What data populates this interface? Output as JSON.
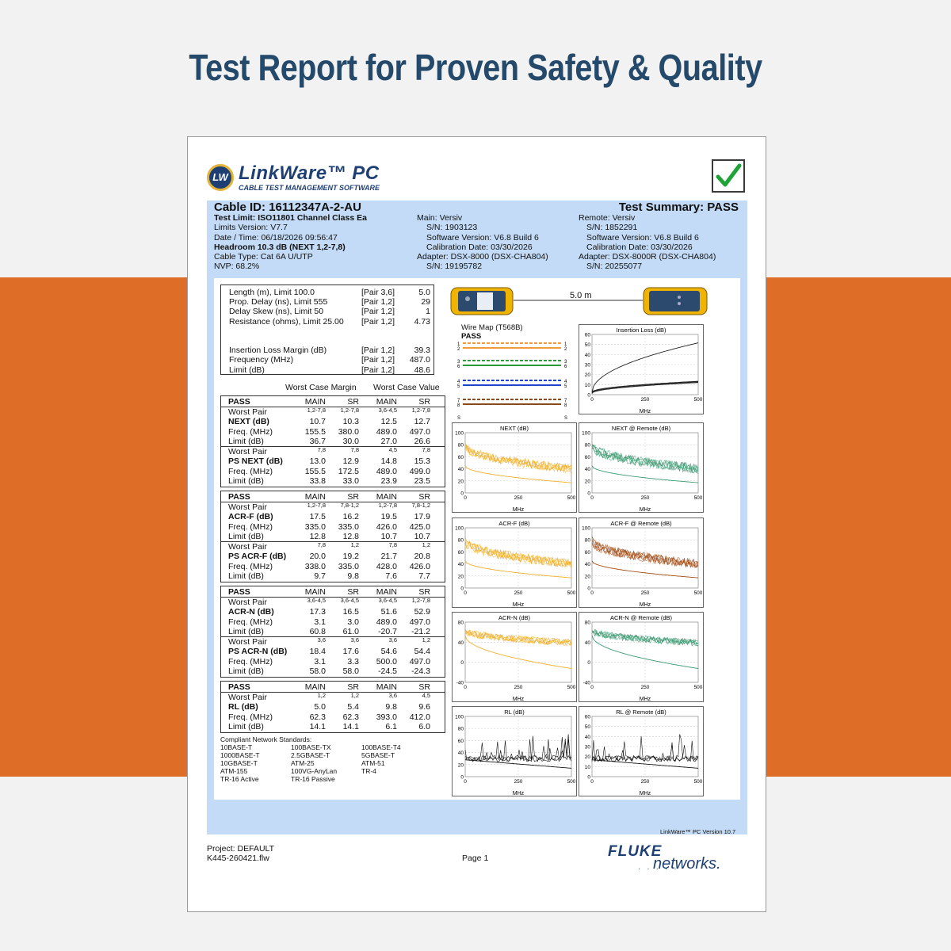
{
  "headline": "Test Report for Proven Safety & Quality",
  "logo": {
    "badge": "LW",
    "title": "LinkWare™ PC",
    "subtitle": "CABLE TEST MANAGEMENT SOFTWARE"
  },
  "colors": {
    "navy": "#24496a",
    "orange": "#de6e27",
    "panel_blue": "#c3dbf6",
    "check_green": "#1fa336",
    "fluke_blue": "#1e3f73"
  },
  "header": {
    "cable_id": "Cable ID: 16112347A-2-AU",
    "test_summary": "Test Summary: PASS",
    "left": [
      "Test Limit: ISO11801 Channel Class Ea",
      "Limits Version: V7.7",
      "Date / Time: 06/18/2026  09:56:47",
      "Headroom 10.3 dB (NEXT 1,2-7,8)",
      "Cable Type: Cat 6A U/UTP",
      "NVP: 68.2%"
    ],
    "main": [
      "Main: Versiv",
      "S/N: 1903123",
      "Software Version: V6.8 Build 6",
      "Calibration Date: 03/30/2026",
      "Adapter: DSX-8000 (DSX-CHA804)",
      "S/N: 19195782"
    ],
    "remote": [
      "Remote: Versiv",
      "S/N: 1852291",
      "Software Version: V6.8 Build 6",
      "Calibration Date: 03/30/2026",
      "Adapter: DSX-8000R (DSX-CHA804)",
      "S/N: 20255077"
    ]
  },
  "summary_box": [
    [
      "Length (m), Limit 100.0",
      "[Pair 3,6]",
      "5.0"
    ],
    [
      "Prop. Delay (ns), Limit 555",
      "[Pair 1,2]",
      "29"
    ],
    [
      "Delay Skew (ns), Limit 50",
      "[Pair 1,2]",
      "1"
    ],
    [
      "Resistance (ohms), Limit 25.00",
      "[Pair 1,2]",
      "4.73"
    ],
    [
      "",
      "",
      ""
    ],
    [
      "",
      "",
      ""
    ],
    [
      "Insertion Loss Margin (dB)",
      "[Pair 1,2]",
      "39.3"
    ],
    [
      "Frequency (MHz)",
      "[Pair 1,2]",
      "487.0"
    ],
    [
      "Limit (dB)",
      "[Pair 1,2]",
      "48.6"
    ]
  ],
  "col_titles": {
    "margin": "Worst Case Margin",
    "value": "Worst Case Value"
  },
  "margin_boxes": [
    {
      "header": [
        "PASS",
        "MAIN",
        "SR",
        "MAIN",
        "SR"
      ],
      "groups": [
        {
          "pairs": [
            "1,2-7,8",
            "1,2-7,8",
            "3,6-4,5",
            "1,2-7,8"
          ],
          "name": "NEXT (dB)",
          "vals": [
            "10.7",
            "10.3",
            "12.5",
            "12.7"
          ],
          "freq": [
            "155.5",
            "380.0",
            "489.0",
            "497.0"
          ],
          "limit": [
            "36.7",
            "30.0",
            "27.0",
            "26.6"
          ]
        },
        {
          "pairs": [
            "7,8",
            "7,8",
            "4,5",
            "7,8"
          ],
          "name": "PS NEXT (dB)",
          "vals": [
            "13.0",
            "12.9",
            "14.8",
            "15.3"
          ],
          "freq": [
            "155.5",
            "172.5",
            "489.0",
            "499.0"
          ],
          "limit": [
            "33.8",
            "33.0",
            "23.9",
            "23.5"
          ]
        }
      ]
    },
    {
      "header": [
        "PASS",
        "MAIN",
        "SR",
        "MAIN",
        "SR"
      ],
      "groups": [
        {
          "pairs": [
            "1,2-7,8",
            "7,8-1,2",
            "1,2-7,8",
            "7,8-1,2"
          ],
          "name": "ACR-F (dB)",
          "vals": [
            "17.5",
            "16.2",
            "19.5",
            "17.9"
          ],
          "freq": [
            "335.0",
            "335.0",
            "426.0",
            "425.0"
          ],
          "limit": [
            "12.8",
            "12.8",
            "10.7",
            "10.7"
          ]
        },
        {
          "pairs": [
            "7,8",
            "1,2",
            "7,8",
            "1,2"
          ],
          "name": "PS ACR-F (dB)",
          "vals": [
            "20.0",
            "19.2",
            "21.7",
            "20.8"
          ],
          "freq": [
            "338.0",
            "335.0",
            "428.0",
            "426.0"
          ],
          "limit": [
            "9.7",
            "9.8",
            "7.6",
            "7.7"
          ]
        }
      ]
    },
    {
      "header": [
        "PASS",
        "MAIN",
        "SR",
        "MAIN",
        "SR"
      ],
      "groups": [
        {
          "pairs": [
            "3,6-4,5",
            "3,6-4,5",
            "3,6-4,5",
            "1,2-7,8"
          ],
          "name": "ACR-N (dB)",
          "vals": [
            "17.3",
            "16.5",
            "51.6",
            "52.9"
          ],
          "freq": [
            "3.1",
            "3.0",
            "489.0",
            "497.0"
          ],
          "limit": [
            "60.8",
            "61.0",
            "-20.7",
            "-21.2"
          ]
        },
        {
          "pairs": [
            "3,6",
            "3,6",
            "3,6",
            "1,2"
          ],
          "name": "PS ACR-N (dB)",
          "vals": [
            "18.4",
            "17.6",
            "54.6",
            "54.4"
          ],
          "freq": [
            "3.1",
            "3.3",
            "500.0",
            "497.0"
          ],
          "limit": [
            "58.0",
            "58.0",
            "-24.5",
            "-24.3"
          ]
        }
      ]
    },
    {
      "header": [
        "PASS",
        "MAIN",
        "SR",
        "MAIN",
        "SR"
      ],
      "groups": [
        {
          "pairs": [
            "1,2",
            "1,2",
            "3,6",
            "4,5"
          ],
          "name": "RL (dB)",
          "vals": [
            "5.0",
            "5.4",
            "9.8",
            "9.6"
          ],
          "freq": [
            "62.3",
            "62.3",
            "393.0",
            "412.0"
          ],
          "limit": [
            "14.1",
            "14.1",
            "6.1",
            "6.0"
          ]
        }
      ]
    }
  ],
  "row_labels": {
    "worst_pair": "Worst Pair",
    "freq": "Freq. (MHz)",
    "limit": "Limit (dB)"
  },
  "standards": {
    "title": "Compliant Network Standards:",
    "items": [
      "10BASE-T",
      "100BASE-TX",
      "100BASE-T4",
      "1000BASE-T",
      "2.5GBASE-T",
      "5GBASE-T",
      "10GBASE-T",
      "ATM-25",
      "ATM-51",
      "ATM-155",
      "100VG-AnyLan",
      "TR-4",
      "TR-16 Active",
      "TR-16 Passive",
      ""
    ]
  },
  "length_label": "5.0 m",
  "wire_map": {
    "title": "Wire Map (T568B)",
    "status": "PASS",
    "pins": [
      "1",
      "2",
      "3",
      "6",
      "4",
      "5",
      "7",
      "8",
      "",
      "S"
    ],
    "colors": [
      "#f39a3b",
      "#f39a3b",
      "#2a9a3a",
      "#2a9a3a",
      "#2244cc",
      "#2244cc",
      "#8a4a1a",
      "#8a4a1a"
    ]
  },
  "charts": {
    "insertion_loss": {
      "title": "Insertion Loss (dB)",
      "yticks": [
        "60",
        "50",
        "40",
        "30",
        "20",
        "10",
        "0"
      ],
      "xticks": [
        "0",
        "250",
        "500"
      ],
      "xlabel": "MHz"
    },
    "next": {
      "title": "NEXT (dB)",
      "yticks": [
        "100",
        "80",
        "60",
        "40",
        "20",
        "0"
      ],
      "xticks": [
        "0",
        "250",
        "500"
      ],
      "xlabel": "MHz"
    },
    "next_remote": {
      "title": "NEXT @ Remote (dB)",
      "yticks": [
        "100",
        "80",
        "60",
        "40",
        "20",
        "0"
      ],
      "xticks": [
        "0",
        "250",
        "500"
      ],
      "xlabel": "MHz"
    },
    "acrf": {
      "title": "ACR-F (dB)",
      "yticks": [
        "100",
        "80",
        "60",
        "40",
        "20",
        "0"
      ],
      "xticks": [
        "0",
        "250",
        "500"
      ],
      "xlabel": "MHz"
    },
    "acrf_remote": {
      "title": "ACR-F @ Remote (dB)",
      "yticks": [
        "100",
        "80",
        "60",
        "40",
        "20",
        "0"
      ],
      "xticks": [
        "0",
        "250",
        "500"
      ],
      "xlabel": "MHz"
    },
    "acrn": {
      "title": "ACR-N (dB)",
      "yticks": [
        "80",
        "40",
        "0",
        "-40"
      ],
      "xticks": [
        "0",
        "250",
        "500"
      ],
      "xlabel": "MHz"
    },
    "acrn_remote": {
      "title": "ACR-N @ Remote (dB)",
      "yticks": [
        "80",
        "40",
        "0",
        "-40"
      ],
      "xticks": [
        "0",
        "250",
        "500"
      ],
      "xlabel": "MHz"
    },
    "rl": {
      "title": "RL (dB)",
      "yticks": [
        "100",
        "80",
        "60",
        "40",
        "20",
        "0"
      ],
      "xticks": [
        "0",
        "250",
        "500"
      ],
      "xlabel": "MHz"
    },
    "rl_remote": {
      "title": "RL @ Remote (dB)",
      "yticks": [
        "60",
        "50",
        "40",
        "30",
        "20",
        "10",
        "0"
      ],
      "xticks": [
        "0",
        "250",
        "500"
      ],
      "xlabel": "MHz"
    }
  },
  "version": "LinkWare™ PC Version 10.7",
  "footer": {
    "project": "Project: DEFAULT",
    "file": "K445-260421.flw",
    "page": "Page 1",
    "brand_top": "FLUKE",
    "brand_bottom": "networks."
  }
}
